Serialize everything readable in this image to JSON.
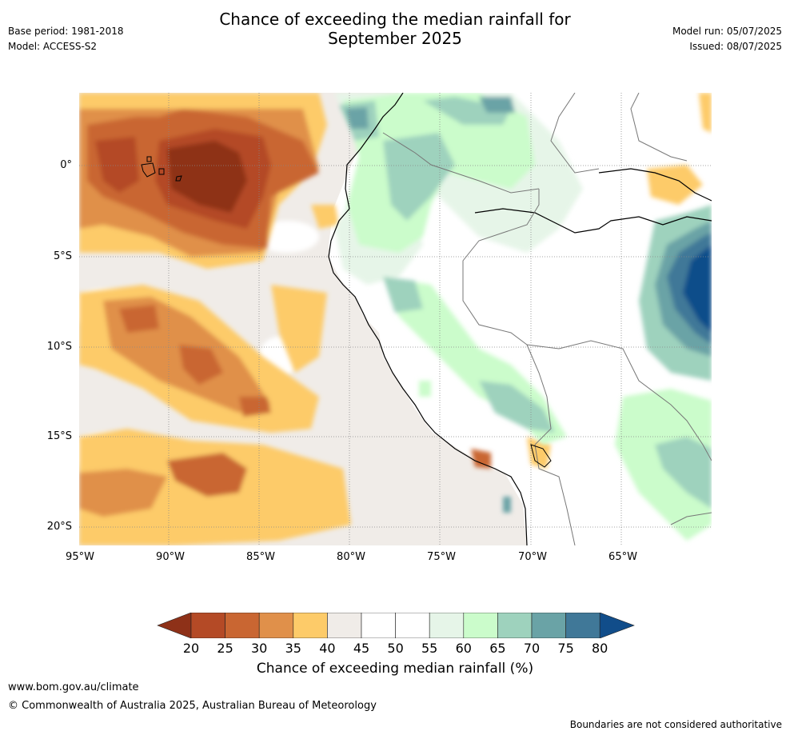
{
  "header": {
    "base_period": "Base period: 1981-2018",
    "model": "Model: ACCESS-S2",
    "title_line1": "Chance of exceeding the median rainfall for",
    "title_line2": "September 2025",
    "model_run": "Model run: 05/07/2025",
    "issued": "Issued: 08/07/2025"
  },
  "map": {
    "lat_labels": [
      "0°",
      "5°S",
      "10°S",
      "15°S",
      "20°S"
    ],
    "lon_labels": [
      "95°W",
      "90°W",
      "85°W",
      "80°W",
      "75°W",
      "70°W",
      "65°W"
    ],
    "ocean_color": "#f0ece8",
    "land_color": "#ffffff"
  },
  "colorbar": {
    "ticks": [
      "20",
      "25",
      "30",
      "35",
      "40",
      "45",
      "50",
      "55",
      "60",
      "65",
      "70",
      "75",
      "80"
    ],
    "colors": [
      "#8e3118",
      "#b44a26",
      "#c96632",
      "#e0904a",
      "#fdcb69",
      "#f0ece8",
      "#ffffff",
      "#ffffff",
      "#e6f5e8",
      "#cbfccb",
      "#9ed2bd",
      "#6aa3a6",
      "#407898",
      "#114d8a"
    ],
    "title": "Chance of exceeding median rainfall (%)"
  },
  "footer": {
    "url": "www.bom.gov.au/climate",
    "copyright": "© Commonwealth of Australia 2025, Australian Bureau of Meteorology",
    "disclaimer": "Boundaries are not considered authoritative"
  }
}
